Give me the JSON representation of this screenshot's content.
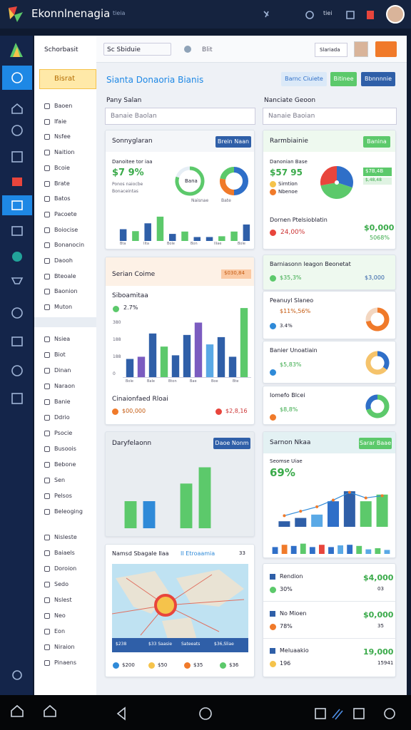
{
  "topbar": {
    "title": "Ekonnlnenagia",
    "tag": "tieia",
    "badge": "tiei"
  },
  "sidebar": {
    "search": "Schorbasit",
    "active": "Bisrat",
    "groups": [
      [
        "Baoen",
        "Ifaie",
        "Nsfee",
        "Naition",
        "Bcoie",
        "Brate",
        "Batos",
        "Pacoete",
        "Boiocise",
        "Bonanocin",
        "Daooh",
        "Bteoale",
        "Baonion",
        "Muton"
      ],
      [
        "Nsiea",
        "Biot",
        "Dinan",
        "Naraon",
        "Banie",
        "Ddrio",
        "Psocie",
        "Busoois",
        "Bebone",
        "Sen",
        "Pelsos",
        "Beleoging"
      ],
      [
        "Nisleste",
        "Baiaels",
        "Doroion",
        "Sedo",
        "Nslest",
        "Neo",
        "Eon",
        "Niraion",
        "Pinaens"
      ]
    ]
  },
  "toolbar": {
    "dropdown": "Sc Sbiduie",
    "item": "Blit",
    "button": "Slariada"
  },
  "page": {
    "title": "Sianta Donaoria Bianis",
    "buttons": [
      "Barnc Ciuiete",
      "Bitinee",
      "Bbnnnnie"
    ],
    "search_left": {
      "label": "Pany Salan",
      "placeholder": "Banaie Baolan"
    },
    "search_right": {
      "label": "Nanciate Geoon",
      "placeholder": "Nanaie Baoian"
    }
  },
  "cards": {
    "summary": {
      "title": "Sonnyglaran",
      "button": "Brein Naan",
      "label": "Danoitee tor iaa",
      "value": "$7 9%",
      "note1": "Ponos naiocbe",
      "note2": "Bonaceintas",
      "donut_center": "Bana",
      "legend": [
        "Naisnae",
        "Bate"
      ],
      "donut1": {
        "values": [
          80,
          20
        ],
        "colors": [
          "#5cc96b",
          "#e6eef5"
        ]
      },
      "donut2": {
        "values": [
          50,
          28,
          22
        ],
        "colors": [
          "#2f6fc8",
          "#f07a2a",
          "#5cc96b"
        ]
      },
      "bars": {
        "ylim": [
          0,
          100
        ],
        "values": [
          30,
          25,
          45,
          62,
          18,
          24,
          10,
          10,
          12,
          24,
          42
        ],
        "colors": [
          "#2f5fa8",
          "#5cc96b",
          "#2f5fa8",
          "#5cc96b",
          "#2f5fa8",
          "#5cc96b",
          "#2f5fa8",
          "#2f5fa8",
          "#5cc96b",
          "#5cc96b",
          "#2f5fa8"
        ]
      },
      "x_labels": [
        "Bta",
        "Ilta",
        "Bole",
        "Bon",
        "Iliae",
        "Bole"
      ]
    },
    "region": {
      "title": "Rarmbiainie",
      "button": "Banina",
      "label": "Danonian Base",
      "value": "$57 95",
      "note1": "Sirntion",
      "note2": "Nbenoe",
      "badge1": "$7B,4B",
      "badge2": "$,48,48",
      "row_title": "Dornen Ptelsioblatin",
      "row_value": "24,00%",
      "row_amount": "$0,000",
      "row_pct": "5068%",
      "donut": {
        "values": [
          30,
          42,
          28
        ],
        "colors": [
          "#2f6fc8",
          "#5cc96b",
          "#e8453c"
        ]
      }
    },
    "series": {
      "title": "Serian Coime",
      "badge": "$030,84",
      "label": "Siboamitaa",
      "pct": "2.7%",
      "y_labels": [
        "380",
        "188",
        "188",
        "0"
      ],
      "bars": {
        "ylim": [
          0,
          100
        ],
        "values": [
          25,
          28,
          60,
          42,
          30,
          58,
          75,
          45,
          55,
          28,
          95
        ],
        "colors": [
          "#2f5fa8",
          "#7b5cc0",
          "#2f5fa8",
          "#5cc96b",
          "#2f5fa8",
          "#2f5fa8",
          "#7b5cc0",
          "#5aa9e6",
          "#2f5fa8",
          "#2f5fa8",
          "#5cc96b"
        ]
      },
      "x_labels": [
        "Bole",
        "Bale",
        "Bton",
        "Bae",
        "Boe",
        "Bte"
      ],
      "footer": "Cinaionfaed Rloai",
      "footer_left": "$00,000",
      "footer_right": "$2,8,16"
    },
    "stats": [
      {
        "title": "Barniasonn Ieagon Beonetat",
        "value": "$35,3%",
        "amount": "$3,000"
      },
      {
        "title": "Peanuyl Slaneo",
        "value": "$11%,56%",
        "note": "3.4%",
        "donut": {
          "values": [
            72,
            28
          ],
          "colors": [
            "#f07a2a",
            "#f3d6c0"
          ]
        }
      },
      {
        "title": "Banier Unoatiain",
        "value": "$5,83%",
        "donut": {
          "values": [
            35,
            65
          ],
          "colors": [
            "#2f6fc8",
            "#f5c36b"
          ]
        }
      },
      {
        "title": "Iomefo Blcei",
        "value": "$8,8%",
        "donut": {
          "values": [
            70,
            30
          ],
          "colors": [
            "#5cc96b",
            "#2f6fc8"
          ]
        }
      }
    ],
    "daily": {
      "title": "Daryfelaonn",
      "button": "Daoe Nonm",
      "bars": {
        "ylim": [
          0,
          100
        ],
        "values": [
          40,
          40,
          null,
          66,
          90
        ],
        "colors": [
          "#5cc96b",
          "#2f8ad8",
          "#5cc96b",
          "#5cc96b",
          "#5cc96b"
        ]
      }
    },
    "trend": {
      "title": "Sarnon Nkaa",
      "button": "Sarar Baae",
      "label": "Seomse Uiae",
      "value": "69%",
      "bars": {
        "ylim": [
          0,
          100
        ],
        "values": [
          10,
          16,
          22,
          46,
          64,
          46,
          58
        ],
        "colors": [
          "#2f5fa8",
          "#2f5fa8",
          "#5aa9e6",
          "#2f6fc8",
          "#2f5fa8",
          "#5cc96b",
          "#5cc96b"
        ]
      },
      "line": {
        "ylim": [
          0,
          100
        ],
        "values": [
          20,
          28,
          36,
          48,
          62,
          52,
          56
        ]
      },
      "strip": {
        "ylim": [
          0,
          100
        ],
        "values": [
          60,
          80,
          70,
          90,
          60,
          80,
          60,
          75,
          80,
          70,
          40,
          50,
          35
        ],
        "colors": [
          "#2f6fc8",
          "#f07a2a",
          "#2f6fc8",
          "#5cc96b",
          "#2f6fc8",
          "#e8453c",
          "#2f6fc8",
          "#5aa9e6",
          "#2f6fc8",
          "#5cc96b",
          "#5aa9e6",
          "#5cc96b",
          "#5aa9e6"
        ]
      }
    },
    "map": {
      "title": "Namsd Sbagale Ilaa",
      "subtitle": "II Etroaamia",
      "corner": "33",
      "strip": [
        "$238",
        "$33 Saasie",
        "Sateeats",
        "$36,Sliae"
      ],
      "legend": [
        "$200",
        "$50",
        "$35",
        "$36"
      ]
    },
    "totals": [
      {
        "title": "Rendion",
        "amount": "$4,000",
        "pct": "30%",
        "note": "03"
      },
      {
        "title": "No Mioen",
        "amount": "$0,000",
        "pct": "78%",
        "note": "35"
      },
      {
        "title": "Meluaakio",
        "amount": "19,000",
        "pct": "196",
        "note": "15941"
      }
    ]
  }
}
